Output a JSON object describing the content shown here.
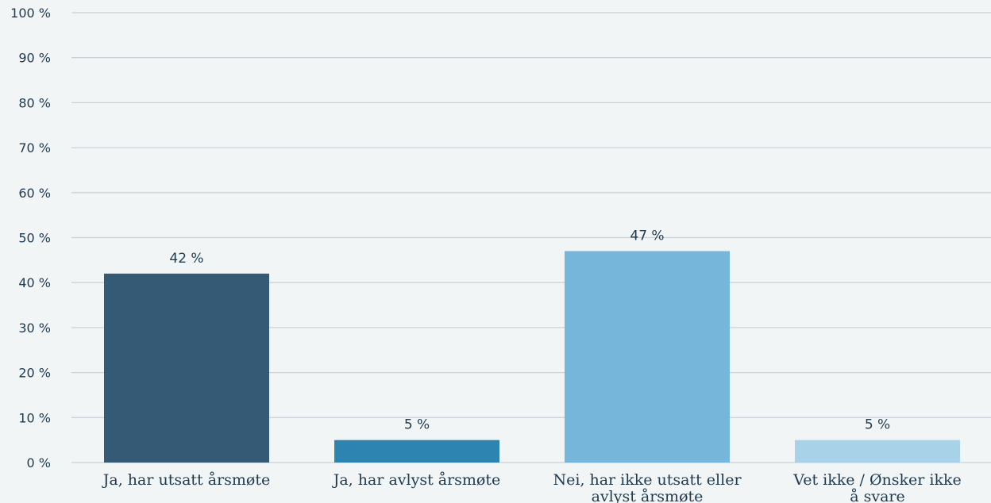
{
  "chart_data": {
    "type": "bar",
    "title": "",
    "xlabel": "",
    "ylabel": "",
    "ylim": [
      0,
      100
    ],
    "yticks": [
      0,
      10,
      20,
      30,
      40,
      50,
      60,
      70,
      80,
      90,
      100
    ],
    "ytick_labels": [
      "0 %",
      "10 %",
      "20 %",
      "30 %",
      "40 %",
      "50 %",
      "60 %",
      "70 %",
      "80 %",
      "90 %",
      "100 %"
    ],
    "grid": true,
    "legend": "none",
    "categories": [
      [
        "Ja, har utsatt årsmøte"
      ],
      [
        "Ja, har avlyst årsmøte"
      ],
      [
        "Nei, har ikke utsatt eller",
        "avlyst årsmøte"
      ],
      [
        "Vet ikke / Ønsker ikke",
        "å svare"
      ]
    ],
    "values": [
      42,
      5,
      47,
      5
    ],
    "value_labels": [
      "42 %",
      "5 %",
      "47 %",
      "5 %"
    ],
    "colors": [
      "#345a76",
      "#2e84b1",
      "#76b6da",
      "#a8d2e8"
    ],
    "background": "#f2f5f6",
    "grid_color": "#c9d2d8",
    "text_color": "#1e3a4f"
  }
}
